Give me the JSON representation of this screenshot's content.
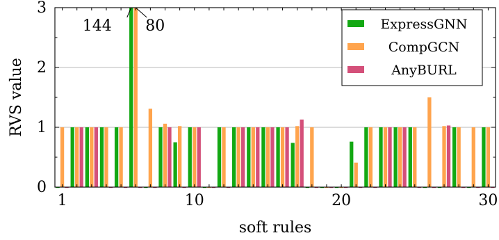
{
  "chart_data": {
    "type": "bar",
    "xlabel": "soft rules",
    "ylabel": "RVS value",
    "xlim": [
      0.5,
      30.5
    ],
    "ylim": [
      0,
      3
    ],
    "xticks": [
      1,
      10,
      20,
      30
    ],
    "yticks": [
      0,
      1,
      2,
      3
    ],
    "grid": "horizontal",
    "legend_position": "top-right",
    "categories": [
      1,
      2,
      3,
      4,
      5,
      6,
      7,
      8,
      9,
      10,
      11,
      12,
      13,
      14,
      15,
      16,
      17,
      18,
      19,
      20,
      21,
      22,
      23,
      24,
      25,
      26,
      27,
      28,
      29,
      30
    ],
    "series": [
      {
        "name": "ExpressGNN",
        "color": "#13a813",
        "values": [
          0,
          1,
          1,
          1,
          1,
          3,
          0,
          1,
          0.75,
          1,
          0,
          1,
          1,
          1,
          1,
          1,
          0.74,
          0,
          0,
          0,
          0.76,
          1,
          1,
          1,
          1,
          0,
          0,
          1,
          0,
          1
        ]
      },
      {
        "name": "CompGCN",
        "color": "#ffa44d",
        "values": [
          1,
          1,
          1,
          1,
          1,
          3,
          1.31,
          1.06,
          1.02,
          1,
          0,
          1,
          1,
          1,
          1,
          1,
          1.02,
          1,
          0,
          0,
          0.41,
          1,
          1,
          1,
          1,
          1.5,
          1.02,
          1,
          1,
          1
        ]
      },
      {
        "name": "AnyBURL",
        "color": "#d4507a",
        "values": [
          0,
          1,
          1,
          0,
          0,
          0,
          0,
          1,
          0,
          1,
          0,
          0,
          1,
          1,
          1,
          1,
          1.13,
          0,
          0,
          0,
          0,
          0,
          1,
          1,
          0,
          0,
          1.03,
          0,
          0,
          0
        ]
      }
    ],
    "annotations": [
      {
        "text": "144",
        "series": "ExpressGNN",
        "category": 6
      },
      {
        "text": "80",
        "series": "CompGCN",
        "category": 6
      }
    ]
  }
}
